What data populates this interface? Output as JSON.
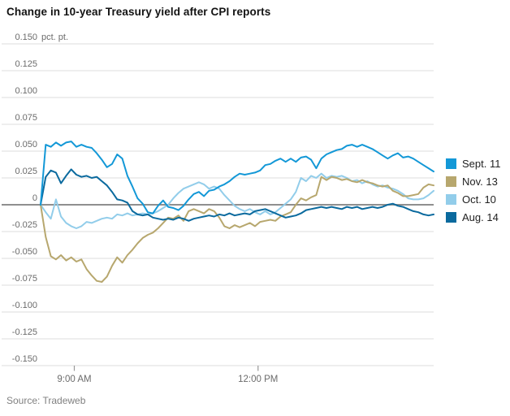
{
  "title": "Change in 10-year Treasury yield after CPI reports",
  "source": "Source: Tradeweb",
  "colors": {
    "grid": "#e8e8e8",
    "zero_line": "#8f8f8f",
    "tick": "#999999",
    "axis_label": "#6b6b6b",
    "title": "#131313",
    "legend_label": "#222222",
    "source": "#808080"
  },
  "chart_data": {
    "type": "line",
    "title": "Change in 10-year Treasury yield after CPI reports",
    "unit_suffix": "pct. pt.",
    "ylabel": "",
    "xlabel": "",
    "ylim": [
      -0.15,
      0.15
    ],
    "grid": "horizontal",
    "legend_position": "right",
    "x_minutes_total": 385,
    "x_step_minutes": 5,
    "x_ticks": [
      {
        "minute": 33,
        "label": "9:00 AM"
      },
      {
        "minute": 213,
        "label": "12:00 PM"
      }
    ],
    "y_ticks": [
      {
        "value": 0.15,
        "label": "0.150"
      },
      {
        "value": 0.125,
        "label": "0.125"
      },
      {
        "value": 0.1,
        "label": "0.100"
      },
      {
        "value": 0.075,
        "label": "0.075"
      },
      {
        "value": 0.05,
        "label": "0.050"
      },
      {
        "value": 0.025,
        "label": "0.025"
      },
      {
        "value": 0,
        "label": "0"
      },
      {
        "value": -0.025,
        "label": "-0.025"
      },
      {
        "value": -0.05,
        "label": "-0.050"
      },
      {
        "value": -0.075,
        "label": "-0.075"
      },
      {
        "value": -0.1,
        "label": "-0.100"
      },
      {
        "value": -0.125,
        "label": "-0.125"
      },
      {
        "value": -0.15,
        "label": "-0.150"
      }
    ],
    "series": [
      {
        "name": "Oct. 10",
        "color": "#92cdea",
        "values": [
          0.0,
          -0.007,
          -0.013,
          0.005,
          -0.011,
          -0.017,
          -0.02,
          -0.022,
          -0.02,
          -0.016,
          -0.017,
          -0.015,
          -0.013,
          -0.012,
          -0.013,
          -0.009,
          -0.01,
          -0.008,
          -0.01,
          -0.009,
          -0.008,
          -0.009,
          -0.008,
          -0.006,
          -0.003,
          0.0,
          0.006,
          0.011,
          0.015,
          0.017,
          0.019,
          0.021,
          0.019,
          0.015,
          0.017,
          0.015,
          0.009,
          0.004,
          -0.001,
          -0.004,
          -0.006,
          -0.004,
          -0.007,
          -0.009,
          -0.006,
          -0.009,
          -0.007,
          -0.003,
          0.001,
          0.005,
          0.012,
          0.025,
          0.022,
          0.027,
          0.025,
          0.029,
          0.025,
          0.027,
          0.026,
          0.027,
          0.025,
          0.022,
          0.023,
          0.02,
          0.022,
          0.019,
          0.017,
          0.018,
          0.016,
          0.015,
          0.013,
          0.01,
          0.006,
          0.005,
          0.005,
          0.006,
          0.009,
          0.013
        ]
      },
      {
        "name": "Nov. 13",
        "color": "#b7a76e",
        "values": [
          0.0,
          -0.03,
          -0.048,
          -0.051,
          -0.047,
          -0.052,
          -0.049,
          -0.053,
          -0.051,
          -0.06,
          -0.066,
          -0.071,
          -0.072,
          -0.067,
          -0.057,
          -0.049,
          -0.054,
          -0.047,
          -0.042,
          -0.036,
          -0.031,
          -0.028,
          -0.026,
          -0.022,
          -0.017,
          -0.012,
          -0.013,
          -0.01,
          -0.015,
          -0.006,
          -0.004,
          -0.006,
          -0.008,
          -0.004,
          -0.006,
          -0.012,
          -0.02,
          -0.022,
          -0.019,
          -0.021,
          -0.019,
          -0.017,
          -0.02,
          -0.016,
          -0.015,
          -0.014,
          -0.015,
          -0.011,
          -0.009,
          -0.007,
          0.0,
          0.006,
          0.004,
          0.007,
          0.009,
          0.026,
          0.023,
          0.026,
          0.025,
          0.023,
          0.024,
          0.022,
          0.021,
          0.023,
          0.021,
          0.02,
          0.018,
          0.017,
          0.018,
          0.013,
          0.011,
          0.008,
          0.008,
          0.009,
          0.01,
          0.016,
          0.019,
          0.018
        ]
      },
      {
        "name": "Aug. 14",
        "color": "#0b6a9e",
        "values": [
          0.0,
          0.026,
          0.032,
          0.03,
          0.02,
          0.027,
          0.033,
          0.028,
          0.026,
          0.027,
          0.025,
          0.026,
          0.022,
          0.018,
          0.012,
          0.005,
          0.004,
          0.002,
          -0.006,
          -0.009,
          -0.01,
          -0.009,
          -0.012,
          -0.013,
          -0.014,
          -0.013,
          -0.014,
          -0.012,
          -0.013,
          -0.015,
          -0.013,
          -0.012,
          -0.011,
          -0.01,
          -0.011,
          -0.009,
          -0.01,
          -0.008,
          -0.01,
          -0.009,
          -0.008,
          -0.009,
          -0.006,
          -0.005,
          -0.004,
          -0.006,
          -0.008,
          -0.01,
          -0.012,
          -0.011,
          -0.01,
          -0.008,
          -0.005,
          -0.004,
          -0.003,
          -0.002,
          -0.003,
          -0.002,
          -0.003,
          -0.004,
          -0.002,
          -0.003,
          -0.002,
          -0.004,
          -0.003,
          -0.002,
          -0.003,
          -0.002,
          0.0,
          0.001,
          -0.001,
          -0.002,
          -0.004,
          -0.006,
          -0.007,
          -0.009,
          -0.01,
          -0.009
        ]
      },
      {
        "name": "Sept. 11",
        "color": "#1398d7",
        "values": [
          0.0,
          0.056,
          0.054,
          0.058,
          0.055,
          0.058,
          0.059,
          0.054,
          0.056,
          0.054,
          0.053,
          0.048,
          0.042,
          0.035,
          0.038,
          0.047,
          0.043,
          0.027,
          0.017,
          0.006,
          0.001,
          -0.007,
          -0.008,
          -0.001,
          0.004,
          -0.002,
          -0.003,
          -0.005,
          -0.001,
          0.005,
          0.01,
          0.012,
          0.008,
          0.013,
          0.014,
          0.017,
          0.019,
          0.022,
          0.026,
          0.029,
          0.028,
          0.029,
          0.03,
          0.032,
          0.037,
          0.038,
          0.041,
          0.043,
          0.04,
          0.043,
          0.04,
          0.044,
          0.045,
          0.042,
          0.034,
          0.043,
          0.047,
          0.049,
          0.051,
          0.052,
          0.055,
          0.056,
          0.054,
          0.056,
          0.054,
          0.052,
          0.049,
          0.046,
          0.043,
          0.046,
          0.048,
          0.044,
          0.045,
          0.043,
          0.04,
          0.037,
          0.034,
          0.031
        ]
      }
    ],
    "legend_order": [
      "Sept. 11",
      "Nov. 13",
      "Oct. 10",
      "Aug. 14"
    ]
  }
}
